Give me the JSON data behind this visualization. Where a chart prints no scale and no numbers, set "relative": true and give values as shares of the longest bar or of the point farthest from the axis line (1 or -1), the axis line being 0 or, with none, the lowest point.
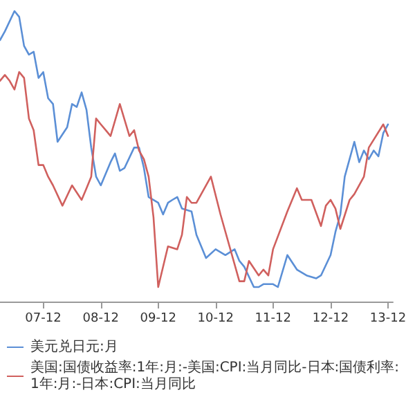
{
  "chart_data": {
    "type": "line",
    "relative": true,
    "grid": false,
    "marker": "none",
    "line_style": "solid",
    "legend": "bottom left",
    "xlim": [
      "2007-03",
      "2014-01"
    ],
    "xticks": [
      {
        "value": "2007-12",
        "label": "07-12"
      },
      {
        "value": "2008-12",
        "label": "08-12"
      },
      {
        "value": "2009-12",
        "label": "09-12"
      },
      {
        "value": "2010-12",
        "label": "10-12"
      },
      {
        "value": "2011-12",
        "label": "11-12"
      },
      {
        "value": "2012-12",
        "label": "12-12"
      },
      {
        "value": "2013-12",
        "label": "13-12"
      }
    ],
    "series": [
      {
        "name": "美元兑日元:月",
        "color": "#5b8fd6",
        "x": [
          "2007-03",
          "2007-04",
          "2007-06",
          "2007-07",
          "2007-08",
          "2007-09",
          "2007-10",
          "2007-11",
          "2007-12",
          "2008-01",
          "2008-02",
          "2008-03",
          "2008-05",
          "2008-06",
          "2008-07",
          "2008-08",
          "2008-09",
          "2008-10",
          "2008-11",
          "2008-12",
          "2009-02",
          "2009-03",
          "2009-04",
          "2009-05",
          "2009-07",
          "2009-08",
          "2009-09",
          "2009-10",
          "2009-12",
          "2010-01",
          "2010-02",
          "2010-03",
          "2010-04",
          "2010-05",
          "2010-07",
          "2010-08",
          "2010-10",
          "2010-12",
          "2011-02",
          "2011-04",
          "2011-05",
          "2011-06",
          "2011-08",
          "2011-09",
          "2011-10",
          "2011-12",
          "2012-01",
          "2012-03",
          "2012-05",
          "2012-07",
          "2012-09",
          "2012-10",
          "2012-12",
          "2013-01",
          "2013-02",
          "2013-03",
          "2013-05",
          "2013-06",
          "2013-07",
          "2013-08",
          "2013-09",
          "2013-10",
          "2013-11",
          "2013-12"
        ],
        "values": [
          0.9,
          0.93,
          1.0,
          0.98,
          0.88,
          0.85,
          0.86,
          0.77,
          0.79,
          0.7,
          0.68,
          0.55,
          0.6,
          0.68,
          0.67,
          0.72,
          0.66,
          0.53,
          0.43,
          0.4,
          0.48,
          0.51,
          0.45,
          0.46,
          0.53,
          0.53,
          0.46,
          0.36,
          0.34,
          0.3,
          0.34,
          0.35,
          0.36,
          0.32,
          0.31,
          0.23,
          0.15,
          0.18,
          0.16,
          0.18,
          0.14,
          0.12,
          0.05,
          0.05,
          0.06,
          0.06,
          0.05,
          0.16,
          0.11,
          0.09,
          0.08,
          0.09,
          0.16,
          0.24,
          0.3,
          0.43,
          0.55,
          0.48,
          0.52,
          0.49,
          0.52,
          0.5,
          0.58,
          0.61
        ]
      },
      {
        "name": "美国:国债收益率:1年:月:-美国:CPI:当月同比-日本:国债利率:1年:月:-日本:CPI:当月同比",
        "color": "#d0605e",
        "x": [
          "2007-03",
          "2007-04",
          "2007-05",
          "2007-06",
          "2007-07",
          "2007-08",
          "2007-09",
          "2007-10",
          "2007-11",
          "2007-12",
          "2008-01",
          "2008-02",
          "2008-04",
          "2008-06",
          "2008-08",
          "2008-09",
          "2008-10",
          "2008-11",
          "2008-12",
          "2009-01",
          "2009-02",
          "2009-04",
          "2009-06",
          "2009-07",
          "2009-08",
          "2009-09",
          "2009-10",
          "2009-11",
          "2009-12",
          "2010-02",
          "2010-04",
          "2010-05",
          "2010-06",
          "2010-07",
          "2010-08",
          "2010-11",
          "2011-01",
          "2011-05",
          "2011-06",
          "2011-07",
          "2011-09",
          "2011-10",
          "2011-11",
          "2011-12",
          "2012-03",
          "2012-05",
          "2012-06",
          "2012-08",
          "2012-10",
          "2012-11",
          "2012-12",
          "2013-01",
          "2013-02",
          "2013-04",
          "2013-05",
          "2013-07",
          "2013-08",
          "2013-11",
          "2013-12"
        ],
        "values": [
          0.76,
          0.78,
          0.76,
          0.73,
          0.79,
          0.77,
          0.63,
          0.59,
          0.47,
          0.47,
          0.43,
          0.4,
          0.33,
          0.4,
          0.35,
          0.39,
          0.43,
          0.63,
          0.61,
          0.59,
          0.57,
          0.68,
          0.57,
          0.59,
          0.52,
          0.49,
          0.43,
          0.29,
          0.05,
          0.19,
          0.18,
          0.23,
          0.36,
          0.34,
          0.34,
          0.43,
          0.3,
          0.07,
          0.07,
          0.14,
          0.09,
          0.11,
          0.09,
          0.18,
          0.31,
          0.39,
          0.35,
          0.35,
          0.26,
          0.33,
          0.35,
          0.32,
          0.25,
          0.35,
          0.37,
          0.43,
          0.53,
          0.61,
          0.57
        ]
      }
    ]
  }
}
